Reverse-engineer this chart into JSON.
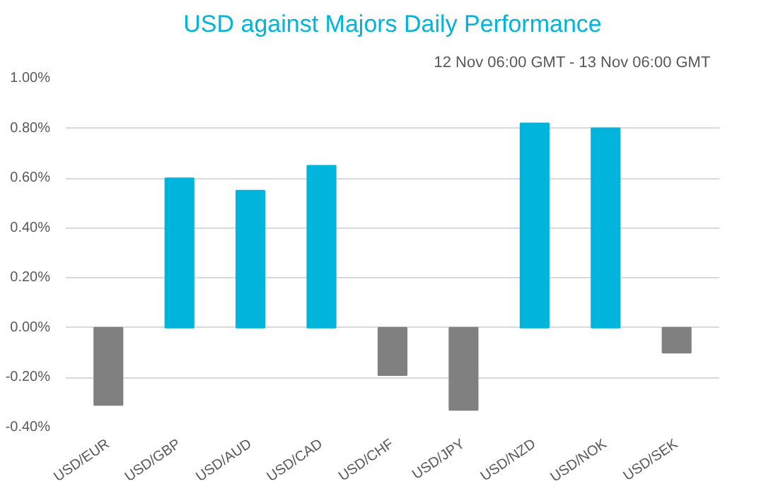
{
  "chart_data": {
    "type": "bar",
    "title": "USD against Majors Daily Performance",
    "subtitle": "12 Nov 06:00 GMT -  13 Nov  06:00 GMT",
    "categories": [
      "USD/EUR",
      "USD/GBP",
      "USD/AUD",
      "USD/CAD",
      "USD/CHF",
      "USD/JPY",
      "USD/NZD",
      "USD/NOK",
      "USD/SEK"
    ],
    "values": [
      -0.31,
      0.6,
      0.55,
      0.65,
      -0.19,
      -0.33,
      0.82,
      0.8,
      -0.1
    ],
    "colors": [
      "#808080",
      "#00b4dc",
      "#00b4dc",
      "#00b4dc",
      "#808080",
      "#808080",
      "#00b4dc",
      "#00b4dc",
      "#808080"
    ],
    "ylim": [
      -0.4,
      1.0
    ],
    "yticks": [
      {
        "value": -0.4,
        "label": "-0.40%"
      },
      {
        "value": -0.2,
        "label": "-0.20%"
      },
      {
        "value": 0,
        "label": "0.00%"
      },
      {
        "value": 0.2,
        "label": "0.20%"
      },
      {
        "value": 0.4,
        "label": "0.40%"
      },
      {
        "value": 0.6,
        "label": "0.60%"
      },
      {
        "value": 0.8,
        "label": "0.80%"
      },
      {
        "value": 1.0,
        "label": "1.00%"
      }
    ],
    "grid": "y"
  }
}
